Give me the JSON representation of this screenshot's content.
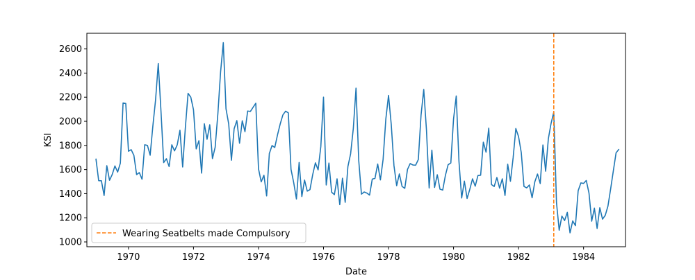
{
  "chart_data": {
    "type": "line",
    "title": "",
    "xlabel": "Date",
    "ylabel": "KSI",
    "xlim": [
      1968.72,
      1985.29
    ],
    "ylim": [
      960,
      2730
    ],
    "x_ticks": [
      1970,
      1972,
      1974,
      1976,
      1978,
      1980,
      1982,
      1984
    ],
    "y_ticks": [
      1000,
      1200,
      1400,
      1600,
      1800,
      2000,
      2200,
      2400,
      2600
    ],
    "grid": false,
    "legend_position": "lower-left",
    "start": "1969-01",
    "frequency": "monthly",
    "series": [
      {
        "color": "#1f77b4",
        "values": [
          1687,
          1508,
          1507,
          1385,
          1632,
          1511,
          1559,
          1630,
          1579,
          1653,
          2152,
          2148,
          1752,
          1765,
          1717,
          1558,
          1575,
          1520,
          1805,
          1800,
          1719,
          1961,
          2177,
          2479,
          2082,
          1658,
          1690,
          1625,
          1805,
          1755,
          1805,
          1926,
          1621,
          1949,
          2232,
          2200,
          2096,
          1771,
          1839,
          1570,
          1980,
          1851,
          1971,
          1691,
          1785,
          2063,
          2409,
          2652,
          2104,
          1978,
          1677,
          1938,
          2006,
          1818,
          2004,
          1914,
          2085,
          2082,
          2116,
          2150,
          1606,
          1498,
          1553,
          1381,
          1733,
          1799,
          1783,
          1886,
          1977,
          2053,
          2084,
          2070,
          1602,
          1491,
          1356,
          1659,
          1376,
          1513,
          1421,
          1434,
          1557,
          1656,
          1597,
          1790,
          2200,
          1472,
          1654,
          1412,
          1392,
          1523,
          1309,
          1528,
          1328,
          1625,
          1730,
          1941,
          2275,
          1676,
          1396,
          1414,
          1405,
          1388,
          1521,
          1527,
          1646,
          1514,
          1685,
          2018,
          2215,
          1974,
          1634,
          1466,
          1564,
          1460,
          1444,
          1601,
          1650,
          1638,
          1636,
          1683,
          2051,
          2264,
          1930,
          1447,
          1761,
          1452,
          1557,
          1437,
          1430,
          1552,
          1640,
          1655,
          2019,
          2210,
          1668,
          1364,
          1504,
          1360,
          1436,
          1523,
          1462,
          1550,
          1553,
          1827,
          1744,
          1943,
          1476,
          1459,
          1534,
          1446,
          1523,
          1385,
          1644,
          1503,
          1698,
          1940,
          1873,
          1741,
          1460,
          1448,
          1472,
          1366,
          1498,
          1563,
          1484,
          1804,
          1586,
          1856,
          1982,
          2077,
          1327,
          1097,
          1214,
          1177,
          1245,
          1075,
          1174,
          1135,
          1424,
          1489,
          1485,
          1509,
          1405,
          1172,
          1280,
          1112,
          1283,
          1189,
          1220,
          1297,
          1440,
          1591,
          1739,
          1767
        ]
      },
      {
        "name": "Wearing Seatbelts made Compulsory",
        "type": "vline",
        "x": "1983-02",
        "color": "#ff7f0e",
        "linestyle": "dashed"
      }
    ]
  }
}
